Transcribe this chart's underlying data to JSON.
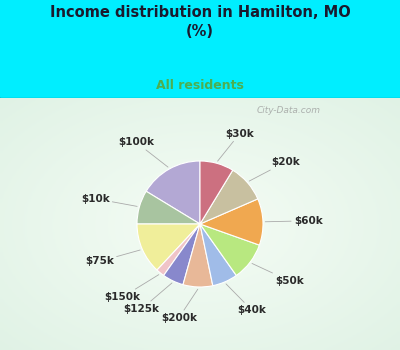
{
  "title": "Income distribution in Hamilton, MO\n(%)",
  "subtitle": "All residents",
  "title_color": "#1a1a2e",
  "subtitle_color": "#4caf50",
  "background_outer": "#00eeff",
  "watermark": "City-Data.com",
  "labels": [
    "$100k",
    "$10k",
    "$75k",
    "$150k",
    "$125k",
    "$200k",
    "$40k",
    "$50k",
    "$60k",
    "$20k",
    "$30k"
  ],
  "values": [
    15,
    8,
    12,
    2,
    5,
    7,
    6,
    9,
    11,
    9,
    8
  ],
  "colors": [
    "#b3a8d4",
    "#a8c4a0",
    "#f0ee9a",
    "#f0c4c8",
    "#8888cc",
    "#e8b898",
    "#a0bce8",
    "#b8e880",
    "#f0a850",
    "#c8c0a0",
    "#cc7080"
  ],
  "startangle": 90,
  "label_fontsize": 7.5,
  "label_color": "#2a2a2a"
}
